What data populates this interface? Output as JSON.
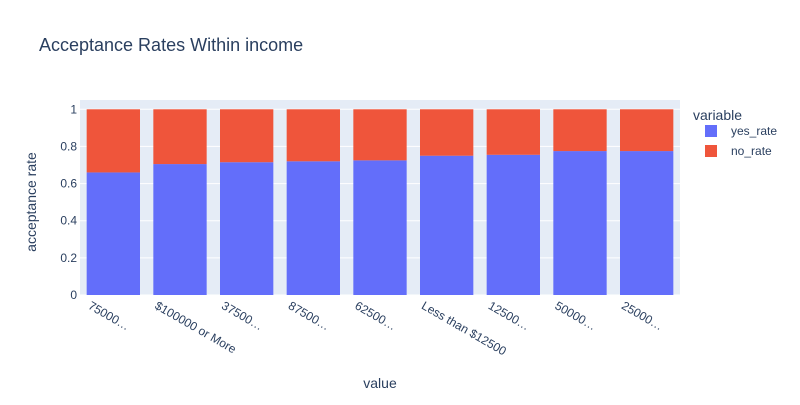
{
  "chart_data": {
    "type": "bar",
    "stacked": true,
    "title": "Acceptance Rates Within income",
    "xlabel": "value",
    "ylabel": "acceptance rate",
    "ylim": [
      0,
      1.05
    ],
    "yticks": [
      "0",
      "0.2",
      "0.4",
      "0.6",
      "0.8",
      "1"
    ],
    "categories": [
      "75000…",
      "$100000 or More",
      "37500…",
      "87500…",
      "62500…",
      "Less than $12500",
      "12500…",
      "50000…",
      "25000…"
    ],
    "series": [
      {
        "name": "yes_rate",
        "color": "#636efa",
        "values": [
          0.66,
          0.705,
          0.715,
          0.72,
          0.725,
          0.75,
          0.755,
          0.775,
          0.775
        ]
      },
      {
        "name": "no_rate",
        "color": "#ef553b",
        "values": [
          0.34,
          0.295,
          0.285,
          0.28,
          0.275,
          0.25,
          0.245,
          0.225,
          0.225
        ]
      }
    ],
    "legend": {
      "title": "variable",
      "position": "right"
    },
    "grid": true,
    "plot_background": "#e5ecf6"
  }
}
